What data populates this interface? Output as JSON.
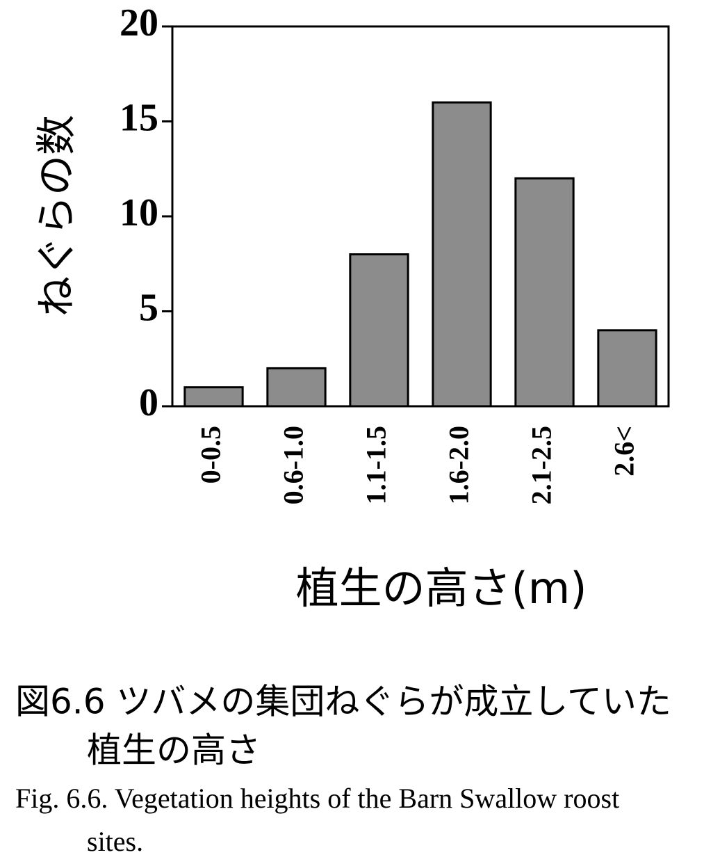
{
  "chart_data": {
    "type": "bar",
    "y_label": "ねぐらの数",
    "x_label": "植生の高さ(m)",
    "categories": [
      "0-0.5",
      "0.6-1.0",
      "1.1-1.5",
      "1.6-2.0",
      "2.1-2.5",
      "2.6<"
    ],
    "values": [
      1,
      2,
      8,
      16,
      12,
      4
    ],
    "color": "#8c8c8c",
    "ylim": [
      0,
      20
    ],
    "yticks": [
      0,
      5,
      10,
      15,
      20
    ],
    "caption_ja": [
      "図6.6 ツバメの集団ねぐらが成立していた",
      "植生の高さ"
    ],
    "caption_en": [
      "Fig. 6.6.  Vegetation heights of the Barn Swallow roost",
      "sites."
    ]
  }
}
